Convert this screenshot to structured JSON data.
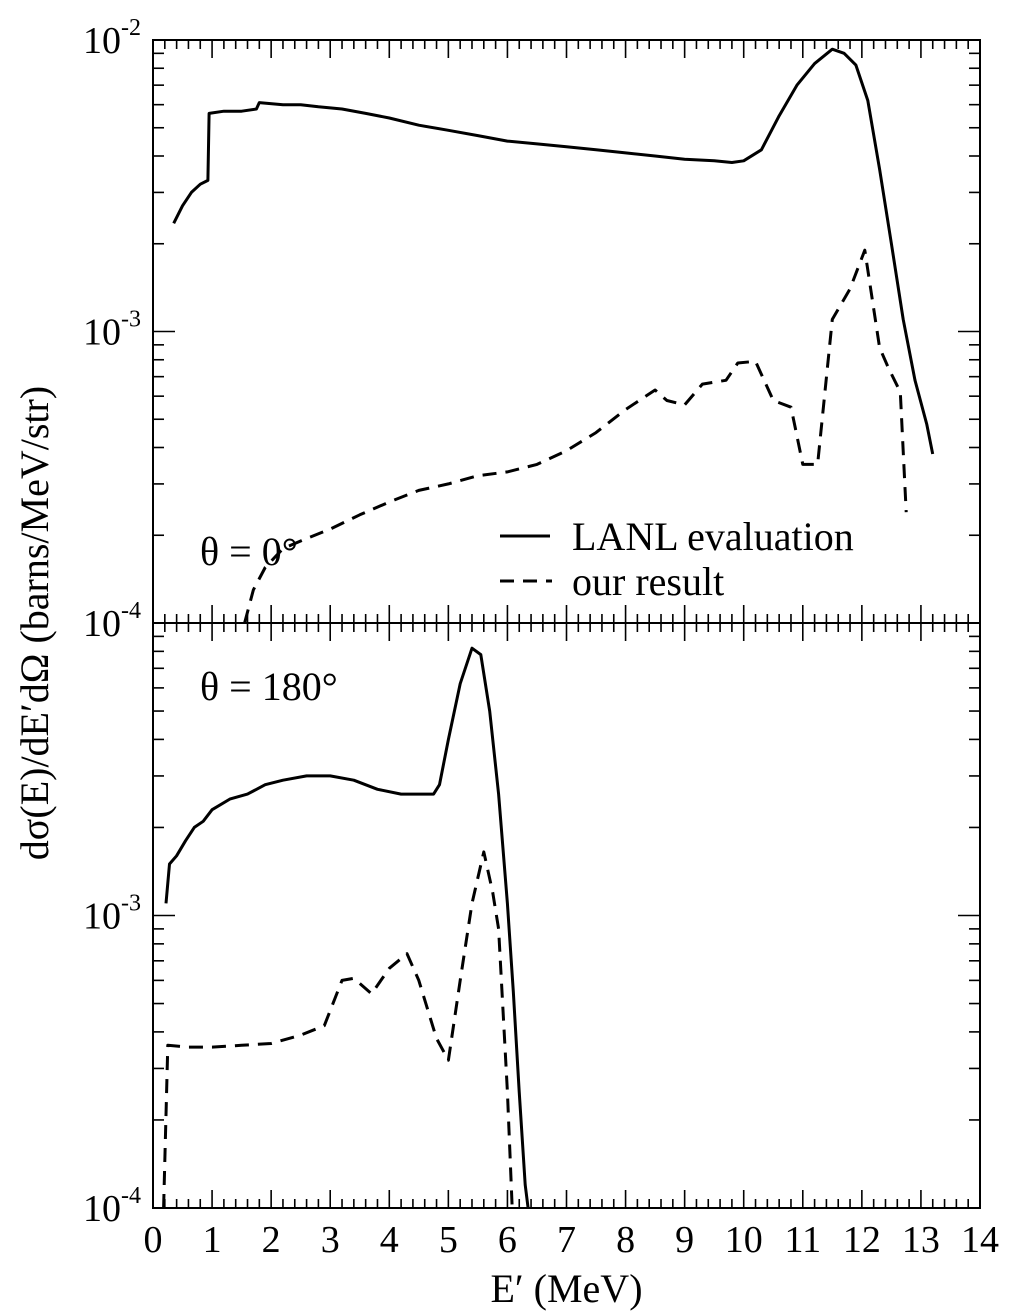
{
  "chart_data": [
    {
      "type": "line",
      "panel": "top",
      "annotation": "θ = 0°",
      "xlabel": "E′ (MeV)",
      "ylabel": "dσ(E)/dE′dΩ (barns/MeV/str)",
      "xlim": [
        0,
        14
      ],
      "ylim": [
        0.0001,
        0.01
      ],
      "yscale": "log",
      "grid": false,
      "legend_position": "bottom-right",
      "x_ticks": [
        "0",
        "1",
        "2",
        "3",
        "4",
        "5",
        "6",
        "7",
        "8",
        "9",
        "10",
        "11",
        "12",
        "13",
        "14"
      ],
      "y_ticks": [
        {
          "base": "10",
          "exp": "-4"
        },
        {
          "base": "10",
          "exp": "-3"
        },
        {
          "base": "10",
          "exp": "-2"
        }
      ],
      "series": [
        {
          "name": "LANL evaluation",
          "style": "solid",
          "points": [
            [
              0.35,
              0.00235
            ],
            [
              0.5,
              0.0027
            ],
            [
              0.65,
              0.003
            ],
            [
              0.8,
              0.0032
            ],
            [
              0.93,
              0.0033
            ],
            [
              0.95,
              0.0056
            ],
            [
              1.2,
              0.0057
            ],
            [
              1.5,
              0.0057
            ],
            [
              1.75,
              0.0058
            ],
            [
              1.8,
              0.0061
            ],
            [
              2.2,
              0.006
            ],
            [
              2.5,
              0.006
            ],
            [
              2.8,
              0.0059
            ],
            [
              3.2,
              0.0058
            ],
            [
              3.6,
              0.0056
            ],
            [
              4.0,
              0.0054
            ],
            [
              4.5,
              0.0051
            ],
            [
              5.0,
              0.0049
            ],
            [
              5.5,
              0.0047
            ],
            [
              6.0,
              0.0045
            ],
            [
              6.5,
              0.0044
            ],
            [
              7.0,
              0.0043
            ],
            [
              7.5,
              0.0042
            ],
            [
              8.0,
              0.0041
            ],
            [
              8.5,
              0.004
            ],
            [
              9.0,
              0.0039
            ],
            [
              9.5,
              0.00385
            ],
            [
              9.8,
              0.0038
            ],
            [
              10.0,
              0.00385
            ],
            [
              10.3,
              0.0042
            ],
            [
              10.6,
              0.0055
            ],
            [
              10.9,
              0.007
            ],
            [
              11.2,
              0.0083
            ],
            [
              11.5,
              0.0093
            ],
            [
              11.7,
              0.009
            ],
            [
              11.9,
              0.0082
            ],
            [
              12.1,
              0.0062
            ],
            [
              12.3,
              0.0036
            ],
            [
              12.5,
              0.002
            ],
            [
              12.7,
              0.0011
            ],
            [
              12.9,
              0.00068
            ],
            [
              13.1,
              0.00048
            ],
            [
              13.2,
              0.00038
            ]
          ]
        },
        {
          "name": "our result",
          "style": "dashed",
          "points": [
            [
              1.55,
              0.0001
            ],
            [
              1.7,
              0.00013
            ],
            [
              1.9,
              0.000155
            ],
            [
              2.2,
              0.00018
            ],
            [
              2.6,
              0.000195
            ],
            [
              3.0,
              0.00021
            ],
            [
              3.5,
              0.000235
            ],
            [
              4.0,
              0.00026
            ],
            [
              4.5,
              0.000285
            ],
            [
              5.0,
              0.0003
            ],
            [
              5.5,
              0.00032
            ],
            [
              6.0,
              0.00033
            ],
            [
              6.5,
              0.00035
            ],
            [
              7.0,
              0.00039
            ],
            [
              7.5,
              0.00045
            ],
            [
              8.0,
              0.00054
            ],
            [
              8.5,
              0.00063
            ],
            [
              8.7,
              0.00058
            ],
            [
              9.0,
              0.00056
            ],
            [
              9.3,
              0.00066
            ],
            [
              9.7,
              0.00068
            ],
            [
              9.9,
              0.00078
            ],
            [
              10.2,
              0.00079
            ],
            [
              10.5,
              0.00058
            ],
            [
              10.8,
              0.00055
            ],
            [
              11.0,
              0.00035
            ],
            [
              11.25,
              0.00035
            ],
            [
              11.5,
              0.0011
            ],
            [
              11.8,
              0.0014
            ],
            [
              12.05,
              0.0019
            ],
            [
              12.3,
              0.00088
            ],
            [
              12.45,
              0.00075
            ],
            [
              12.65,
              0.00062
            ],
            [
              12.75,
              0.00024
            ]
          ]
        }
      ]
    },
    {
      "type": "line",
      "panel": "bottom",
      "annotation": "θ = 180°",
      "xlabel": "E′ (MeV)",
      "ylabel": "dσ(E)/dE′dΩ (barns/MeV/str)",
      "xlim": [
        0,
        14
      ],
      "ylim": [
        0.0001,
        0.01
      ],
      "yscale": "log",
      "grid": false,
      "x_ticks": [
        "0",
        "1",
        "2",
        "3",
        "4",
        "5",
        "6",
        "7",
        "8",
        "9",
        "10",
        "11",
        "12",
        "13",
        "14"
      ],
      "y_ticks": [
        {
          "base": "10",
          "exp": "-4"
        },
        {
          "base": "10",
          "exp": "-3"
        }
      ],
      "series": [
        {
          "name": "LANL evaluation",
          "style": "solid",
          "points": [
            [
              0.22,
              0.0011
            ],
            [
              0.28,
              0.0015
            ],
            [
              0.4,
              0.0016
            ],
            [
              0.55,
              0.0018
            ],
            [
              0.7,
              0.002
            ],
            [
              0.85,
              0.0021
            ],
            [
              1.0,
              0.0023
            ],
            [
              1.3,
              0.0025
            ],
            [
              1.6,
              0.0026
            ],
            [
              1.9,
              0.0028
            ],
            [
              2.2,
              0.0029
            ],
            [
              2.6,
              0.003
            ],
            [
              3.0,
              0.003
            ],
            [
              3.4,
              0.0029
            ],
            [
              3.8,
              0.0027
            ],
            [
              4.2,
              0.0026
            ],
            [
              4.5,
              0.0026
            ],
            [
              4.75,
              0.0026
            ],
            [
              4.85,
              0.0028
            ],
            [
              5.0,
              0.004
            ],
            [
              5.2,
              0.0062
            ],
            [
              5.4,
              0.0082
            ],
            [
              5.55,
              0.0078
            ],
            [
              5.7,
              0.005
            ],
            [
              5.85,
              0.0026
            ],
            [
              6.0,
              0.0011
            ],
            [
              6.1,
              0.00055
            ],
            [
              6.2,
              0.00025
            ],
            [
              6.3,
              0.00012
            ],
            [
              6.35,
              0.0001
            ]
          ]
        },
        {
          "name": "our result",
          "style": "dashed",
          "points": [
            [
              0.18,
              0.0001
            ],
            [
              0.25,
              0.00036
            ],
            [
              0.6,
              0.000355
            ],
            [
              1.0,
              0.000355
            ],
            [
              1.5,
              0.00036
            ],
            [
              2.0,
              0.000365
            ],
            [
              2.5,
              0.00039
            ],
            [
              2.9,
              0.00042
            ],
            [
              3.2,
              0.0006
            ],
            [
              3.4,
              0.00061
            ],
            [
              3.7,
              0.00054
            ],
            [
              4.0,
              0.00066
            ],
            [
              4.3,
              0.00074
            ],
            [
              4.5,
              0.0006
            ],
            [
              4.8,
              0.00038
            ],
            [
              5.0,
              0.00032
            ],
            [
              5.2,
              0.0006
            ],
            [
              5.4,
              0.0011
            ],
            [
              5.6,
              0.00165
            ],
            [
              5.75,
              0.0012
            ],
            [
              5.85,
              0.0009
            ],
            [
              6.0,
              0.00025
            ],
            [
              6.08,
              0.0001
            ]
          ]
        }
      ]
    }
  ]
}
